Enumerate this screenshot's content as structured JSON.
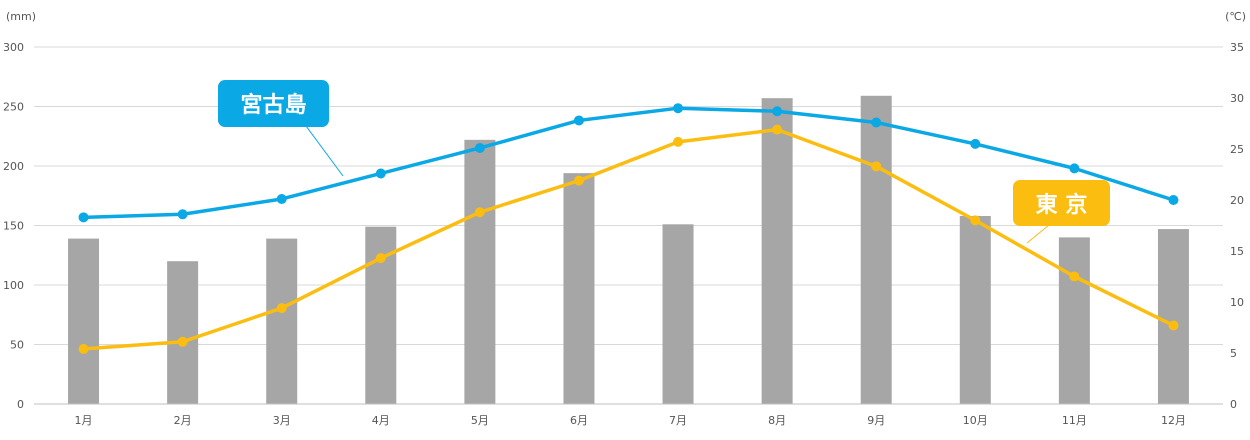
{
  "chart_data": {
    "type": "bar+line",
    "categories": [
      "1月",
      "2月",
      "3月",
      "4月",
      "5月",
      "6月",
      "7月",
      "8月",
      "9月",
      "10月",
      "11月",
      "12月"
    ],
    "bars": {
      "axis": "left",
      "color": "#a6a6a6",
      "values": [
        139,
        120,
        139,
        149,
        222,
        194,
        151,
        257,
        259,
        158,
        140,
        147
      ]
    },
    "lines": [
      {
        "name": "宮古島",
        "axis": "right",
        "color": "#0ba8e6",
        "values": [
          18.3,
          18.6,
          20.1,
          22.6,
          25.1,
          27.8,
          29.0,
          28.7,
          27.6,
          25.5,
          23.1,
          20.0
        ]
      },
      {
        "name": "東 京",
        "axis": "right",
        "color": "#fbbd0f",
        "values": [
          5.4,
          6.1,
          9.4,
          14.3,
          18.8,
          21.9,
          25.7,
          26.9,
          23.3,
          18.0,
          12.5,
          7.7
        ]
      }
    ],
    "yleft": {
      "unit": "(mm)",
      "range": [
        0,
        300
      ],
      "ticks": [
        0,
        50,
        100,
        150,
        200,
        250,
        300
      ]
    },
    "yright": {
      "unit": "(℃)",
      "range": [
        0,
        35
      ],
      "ticks": [
        0,
        5,
        10,
        15,
        20,
        25,
        30,
        35
      ]
    },
    "grid": true,
    "gridColor": "#d9d9d9"
  }
}
